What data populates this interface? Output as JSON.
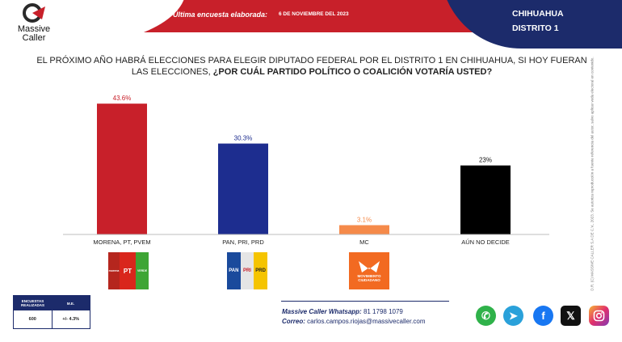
{
  "brand": {
    "line1": "Massive",
    "line2": "Caller"
  },
  "header": {
    "label": "Última encuesta elaborada:",
    "date": "6 DE NOVIEMBRE DEL 2023",
    "state": "CHIHUAHUA",
    "district": "DISTRITO 1"
  },
  "question": {
    "part1": "EL PRÓXIMO AÑO HABRÁ ELECCIONES PARA ELEGIR DIPUTADO FEDERAL POR EL DISTRITO 1 EN CHIHUAHUA, SI HOY FUERAN LAS ELECCIONES,",
    "part2": "¿POR CUÁL PARTIDO POLÍTICO O COALICIÓN VOTARÍA USTED?"
  },
  "chart_data": {
    "type": "bar",
    "categories": [
      "MORENA, PT, PVEM",
      "PAN, PRI, PRD",
      "MC",
      "AÚN NO DECIDE"
    ],
    "values": [
      43.6,
      30.3,
      3.1,
      23
    ],
    "value_labels": [
      "43.6%",
      "30.3%",
      "3.1%",
      "23%"
    ],
    "colors": [
      "#c8202a",
      "#1d2d8f",
      "#f58a4a",
      "#000000"
    ],
    "ylim": [
      0,
      45
    ],
    "grid": false,
    "legend": "none"
  },
  "party_logos": {
    "morena": {
      "icon": "morena-pt-pvem-logo",
      "texts": [
        "morena",
        "PT",
        "VERDE"
      ],
      "colors": [
        "#b5261e",
        "#d9261c",
        "#3ea535"
      ]
    },
    "pan": {
      "icon": "pan-pri-prd-logo",
      "texts": [
        "PAN",
        "PRI",
        "PRD"
      ],
      "colors": [
        "#1a4a9c",
        "#e5e5e5",
        "#f5c400"
      ]
    },
    "mc": {
      "icon": "mc-logo",
      "texts": [
        "MOVIMIENTO",
        "CIUDADANO"
      ],
      "color": "#f26a21"
    }
  },
  "survey": {
    "head_left": "ENCUESTAS REALIZADAS",
    "head_right": "M.E.",
    "count": "600",
    "margin": "+/- 4.3%"
  },
  "contact": {
    "whatsapp_label": "Massive Caller Whatsapp:",
    "whatsapp_number": "81 1798 1079",
    "email_label": "Correo:",
    "email": "carlos.campos.riojas@massivecaller.com"
  },
  "side_note": "D.R. (C) MASSIVE CALLER S.A DE C.V., 2023. Se autoriza reproducción a fuente referencia del autor, salvo aplicar veda electoral en contenido.",
  "social_icons": [
    "whatsapp-icon",
    "telegram-icon",
    "facebook-icon",
    "x-icon",
    "instagram-icon"
  ]
}
